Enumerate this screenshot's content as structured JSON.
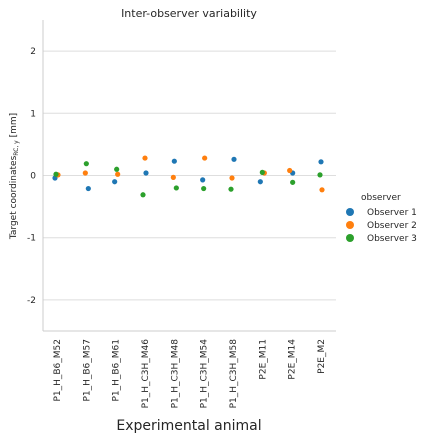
{
  "chart_data": {
    "type": "scatter",
    "title": "Inter-observer variability",
    "xlabel": "Experimental animal",
    "ylabel": "Target coordinates",
    "ylabel_sub": "RC, y",
    "ylabel_unit": " [mm]",
    "ylim": [
      -2.5,
      2.5
    ],
    "yticks": [
      -2,
      -1,
      0,
      1,
      2
    ],
    "grid": "horizontal",
    "categories": [
      "P1_H_B6_M52",
      "P1_H_B6_M57",
      "P1_H_B6_M61",
      "P1_H_C3H_M46",
      "P1_H_C3H_M48",
      "P1_H_C3H_M54",
      "P1_H_C3H_M58",
      "P2E_M11",
      "P2E_M14",
      "P2E_M2"
    ],
    "legend": {
      "title": "observer",
      "placement": "right"
    },
    "series": [
      {
        "name": "Observer 1",
        "color": "#1f77b4",
        "values": [
          -0.04,
          -0.21,
          -0.1,
          0.04,
          0.23,
          -0.07,
          0.26,
          -0.1,
          0.04,
          0.22
        ]
      },
      {
        "name": "Observer 2",
        "color": "#ff7f0e",
        "values": [
          0.01,
          0.04,
          0.02,
          0.28,
          -0.03,
          0.28,
          -0.04,
          0.04,
          0.08,
          -0.23
        ]
      },
      {
        "name": "Observer 3",
        "color": "#2ca02c",
        "values": [
          0.02,
          0.19,
          0.1,
          -0.31,
          -0.2,
          -0.21,
          -0.22,
          0.05,
          -0.11,
          0.01
        ]
      }
    ]
  }
}
